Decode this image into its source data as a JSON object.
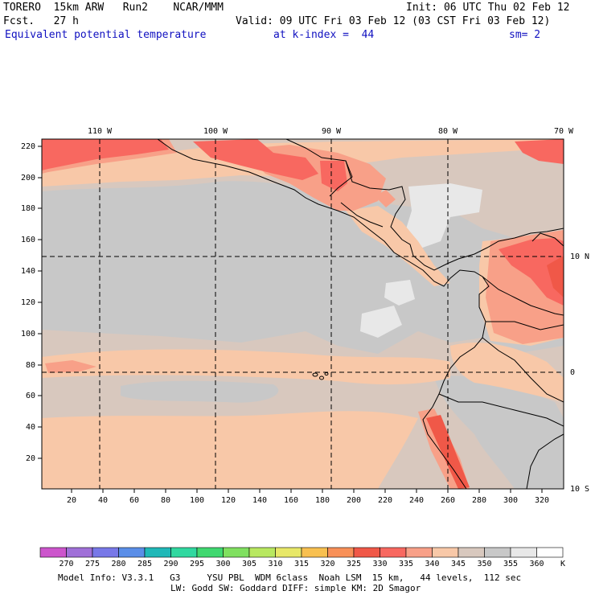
{
  "header": {
    "model": "TORERO  15km ARW   Run2    NCAR/MMM",
    "init": "Init: 06 UTC Thu 02 Feb 12",
    "fcst": "Fcst.   27 h",
    "valid": "Valid: 09 UTC Fri 03 Feb 12 (03 CST Fri 03 Feb 12)",
    "field": "Equivalent potential temperature",
    "level": "at k-index =  44",
    "smoothing": "sm= 2"
  },
  "map": {
    "lon_labels": [
      "110 W",
      "100 W",
      "90 W",
      "80 W",
      "70 W"
    ],
    "lat_labels": [
      "10 N",
      "0",
      "10 S"
    ],
    "y_ticks": [
      "220",
      "200",
      "180",
      "160",
      "140",
      "120",
      "100",
      "80",
      "60",
      "40",
      "20"
    ],
    "x_ticks": [
      "20",
      "40",
      "60",
      "80",
      "100",
      "120",
      "140",
      "160",
      "180",
      "200",
      "220",
      "240",
      "260",
      "280",
      "300",
      "320"
    ]
  },
  "colorbar": {
    "levels": [
      "270",
      "275",
      "280",
      "285",
      "290",
      "295",
      "300",
      "305",
      "310",
      "315",
      "320",
      "325",
      "330",
      "335",
      "340",
      "345",
      "350",
      "355",
      "360"
    ],
    "unit": "K",
    "colors": [
      "#cc55cc",
      "#a070d8",
      "#7878e8",
      "#5a8ee8",
      "#20b8b8",
      "#30d8a0",
      "#40d870",
      "#80e060",
      "#b8e860",
      "#e8e868",
      "#f8c050",
      "#f89058",
      "#f05848",
      "#f86860",
      "#f8a088",
      "#f8c8a8",
      "#d8c8be",
      "#c8c8c8",
      "#e8e8e8",
      "#ffffff"
    ]
  },
  "footer": {
    "line1": "Model Info: V3.3.1   G3     YSU PBL  WDM 6class  Noah LSM  15 km,   44 levels,  112 sec",
    "line2": "LW: Godd SW: Goddard DIFF: simple KM: 2D Smagor"
  }
}
